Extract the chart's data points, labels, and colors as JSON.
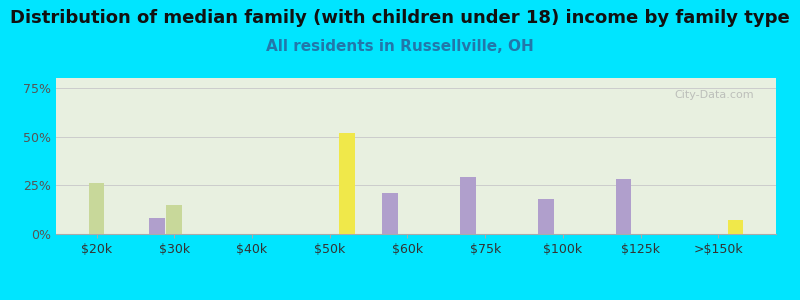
{
  "title": "Distribution of median family (with children under 18) income by family type",
  "subtitle": "All residents in Russellville, OH",
  "categories": [
    "$20k",
    "$30k",
    "$40k",
    "$50k",
    "$60k",
    "$75k",
    "$100k",
    "$125k",
    ">$150k"
  ],
  "series": {
    "Married couple": [
      0,
      8,
      0,
      0,
      21,
      29,
      18,
      28,
      0
    ],
    "Male, no wife": [
      26,
      15,
      0,
      0,
      0,
      0,
      0,
      0,
      0
    ],
    "Female, no husband": [
      0,
      0,
      0,
      52,
      0,
      0,
      0,
      0,
      7
    ]
  },
  "colors": {
    "Married couple": "#b09fcc",
    "Male, no wife": "#c8d89a",
    "Female, no husband": "#f0e84a"
  },
  "ylim": [
    0,
    80
  ],
  "yticks": [
    0,
    25,
    50,
    75
  ],
  "ytick_labels": [
    "0%",
    "25%",
    "50%",
    "75%"
  ],
  "background_outer": "#00e5ff",
  "background_plot": "#e8f0e0",
  "title_fontsize": 13,
  "subtitle_fontsize": 11,
  "subtitle_color": "#2277aa",
  "bar_width": 0.22
}
